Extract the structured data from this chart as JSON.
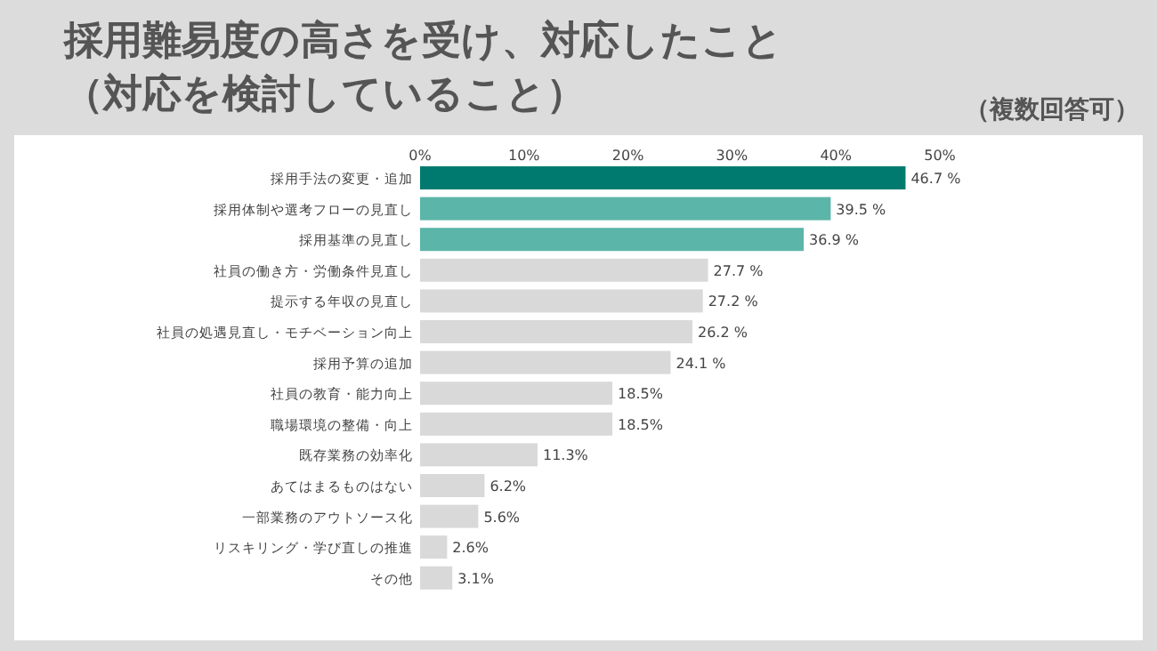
{
  "chart_data": {
    "type": "bar",
    "orientation": "horizontal",
    "title": "採用難易度の高さを受け、対応したこと",
    "subtitle": "（対応を検討していること）",
    "annotations": [
      "（複数回答可）"
    ],
    "categories": [
      "採用手法の変更・追加",
      "採用体制や選考フローの見直し",
      "採用基準の見直し",
      "社員の働き方・労働条件見直し",
      "提示する年収の見直し",
      "社員の処遇見直し・モチベーション向上",
      "採用予算の追加",
      "社員の教育・能力向上",
      "職場環境の整備・向上",
      "既存業務の効率化",
      "あてはまるものはない",
      "一部業務のアウトソース化",
      "リスキリング・学び直しの推進",
      "その他"
    ],
    "values": [
      46.7,
      39.5,
      36.9,
      27.7,
      27.2,
      26.2,
      24.1,
      18.5,
      18.5,
      11.3,
      6.2,
      5.6,
      2.6,
      3.1
    ],
    "value_labels": [
      "46.7 %",
      "39.5 %",
      "36.9 %",
      "27.7 %",
      "27.2 %",
      "26.2 %",
      "24.1 %",
      "18.5%",
      "18.5%",
      "11.3%",
      "6.2%",
      "5.6%",
      "2.6%",
      "3.1%"
    ],
    "colors": [
      "#007a6e",
      "#5bb5a8",
      "#5bb5a8",
      "#d9d9d9",
      "#d9d9d9",
      "#d9d9d9",
      "#d9d9d9",
      "#d9d9d9",
      "#d9d9d9",
      "#d9d9d9",
      "#d9d9d9",
      "#d9d9d9",
      "#d9d9d9",
      "#d9d9d9"
    ],
    "xlim": [
      0,
      50
    ],
    "xticks": [
      {
        "value": 0,
        "label": "0%"
      },
      {
        "value": 10,
        "label": "10%"
      },
      {
        "value": 20,
        "label": "20%"
      },
      {
        "value": 30,
        "label": "30%"
      },
      {
        "value": 40,
        "label": "40%"
      },
      {
        "value": 50,
        "label": "50%"
      }
    ]
  }
}
